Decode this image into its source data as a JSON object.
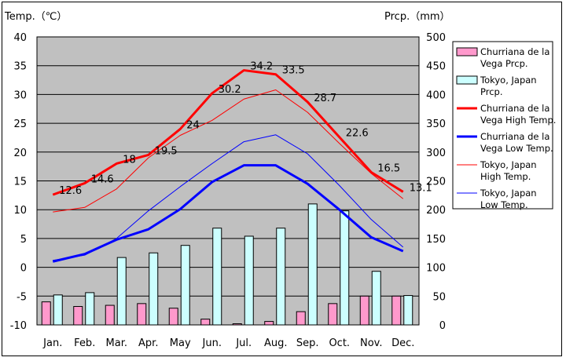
{
  "chart_data": {
    "type": "bar+line",
    "categories": [
      "Jan.",
      "Feb.",
      "Mar.",
      "Apr.",
      "May",
      "Jun.",
      "Jul.",
      "Aug.",
      "Sep.",
      "Oct.",
      "Nov.",
      "Dec."
    ],
    "left_axis": {
      "title": "Temp.（℃）",
      "ylim": [
        -10,
        40
      ],
      "ticks": [
        40,
        35,
        30,
        25,
        20,
        15,
        10,
        5,
        0,
        -5,
        -10
      ]
    },
    "right_axis": {
      "title": "Prcp.（mm）",
      "ylim": [
        0,
        500
      ],
      "ticks": [
        500,
        450,
        400,
        350,
        300,
        250,
        200,
        150,
        100,
        50,
        0
      ]
    },
    "grid": true,
    "legend_position": "right",
    "bar_series": [
      {
        "name": "Churriana de la Vega Prcp.",
        "legend_lines": [
          "Churriana de la",
          "Vega Prcp."
        ],
        "color": "#ff99cc",
        "values": [
          40,
          32,
          34,
          37,
          29,
          10,
          2,
          6,
          23,
          37,
          50,
          50
        ]
      },
      {
        "name": "Tokyo, Japan Prcp.",
        "legend_lines": [
          "Tokyo, Japan",
          "Prcp."
        ],
        "color": "#ccffff",
        "values": [
          52,
          56,
          117,
          125,
          138,
          168,
          154,
          168,
          210,
          198,
          93,
          51
        ]
      }
    ],
    "line_series": [
      {
        "name": "Churriana de la Vega High Temp.",
        "legend_lines": [
          "Churriana de la",
          "Vega High Temp."
        ],
        "color": "#ff0000",
        "width": "thick",
        "values": [
          12.6,
          14.6,
          18,
          19.5,
          24,
          30.2,
          34.2,
          33.5,
          28.7,
          22.6,
          16.5,
          13.1
        ],
        "labels": [
          "12.6",
          "14.6",
          "18",
          "19.5",
          "24",
          "30.2",
          "34.2",
          "33.5",
          "28.7",
          "22.6",
          "16.5",
          "13.1"
        ]
      },
      {
        "name": "Churriana de la Vega Low Temp.",
        "legend_lines": [
          "Churriana de la",
          "Vega Low Temp."
        ],
        "color": "#0000ff",
        "width": "thick",
        "values": [
          1,
          2.3,
          4.8,
          6.6,
          10.1,
          14.8,
          17.7,
          17.7,
          14.5,
          10,
          5.2,
          2.8
        ]
      },
      {
        "name": "Tokyo, Japan High Temp.",
        "legend_lines": [
          "Tokyo, Japan",
          "High Temp."
        ],
        "color": "#ff0000",
        "width": "thin",
        "values": [
          9.6,
          10.4,
          13.6,
          19,
          22.9,
          25.5,
          29.2,
          30.8,
          26.9,
          21.5,
          16.3,
          11.9
        ]
      },
      {
        "name": "Tokyo, Japan Low Temp.",
        "legend_lines": [
          "Tokyo, Japan",
          "Low Temp."
        ],
        "color": "#0000ff",
        "width": "thin",
        "values": [
          1.2,
          2.1,
          5,
          9.8,
          14,
          18,
          21.8,
          23,
          19.7,
          14.2,
          8.3,
          3.5
        ]
      }
    ]
  }
}
